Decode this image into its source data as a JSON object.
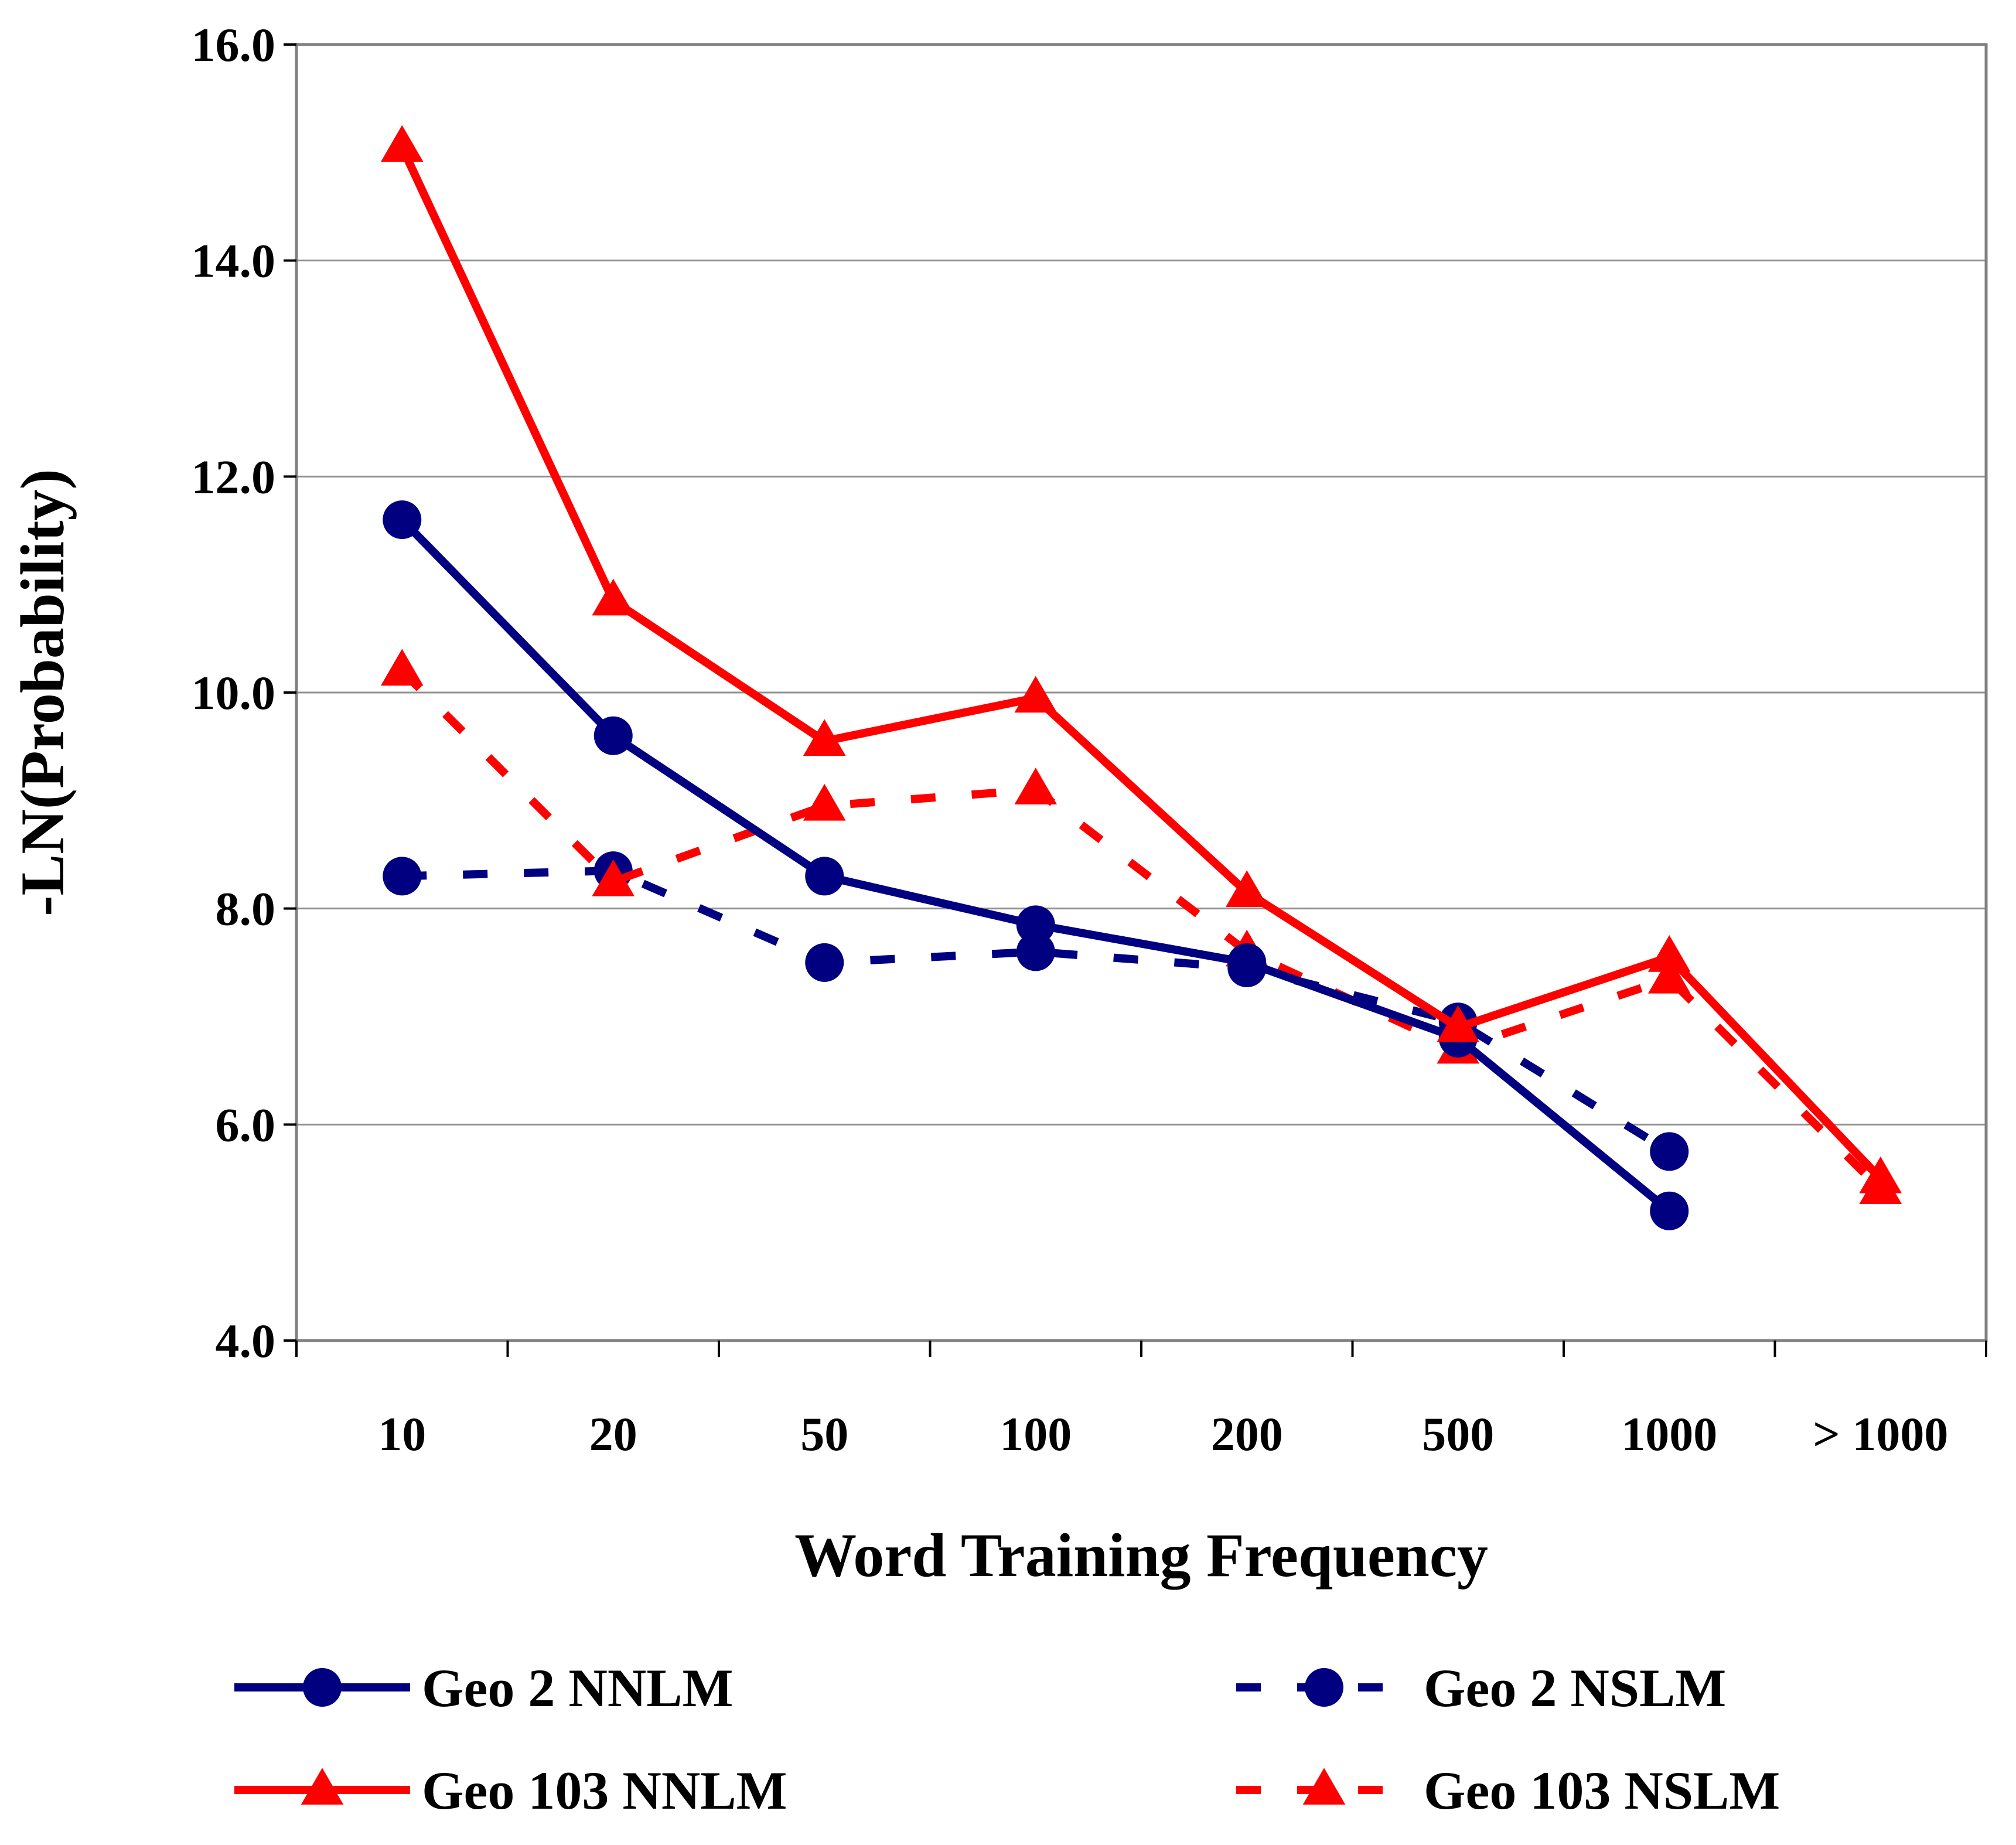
{
  "chart_data": {
    "type": "line",
    "title": "",
    "xlabel": "Word Training Frequency",
    "ylabel": "-LN(Probability)",
    "categories": [
      "10",
      "20",
      "50",
      "100",
      "200",
      "500",
      "1000",
      "> 1000"
    ],
    "ylim": [
      4.0,
      16.0
    ],
    "yticks": [
      "4.0",
      "6.0",
      "8.0",
      "10.0",
      "12.0",
      "14.0",
      "16.0"
    ],
    "grid": true,
    "legend_position": "bottom",
    "series": [
      {
        "name": "Geo 2 NNLM",
        "color": "#000080",
        "dash": "solid",
        "marker": "circle",
        "values": [
          11.6,
          9.6,
          8.3,
          7.85,
          7.5,
          6.8,
          5.2,
          null
        ]
      },
      {
        "name": "Geo 2 NSLM",
        "color": "#000080",
        "dash": "dashed",
        "marker": "circle",
        "values": [
          8.3,
          8.35,
          7.5,
          7.6,
          7.45,
          6.95,
          5.75,
          null
        ]
      },
      {
        "name": "Geo 103 NNLM",
        "color": "#ff0000",
        "dash": "solid",
        "marker": "triangle",
        "values": [
          15.05,
          10.85,
          9.55,
          9.95,
          8.15,
          6.9,
          7.55,
          5.5
        ]
      },
      {
        "name": "Geo 103 NSLM",
        "color": "#ff0000",
        "dash": "dashed",
        "marker": "triangle",
        "values": [
          10.2,
          8.25,
          8.95,
          9.1,
          7.6,
          6.7,
          7.35,
          5.4
        ]
      }
    ]
  }
}
